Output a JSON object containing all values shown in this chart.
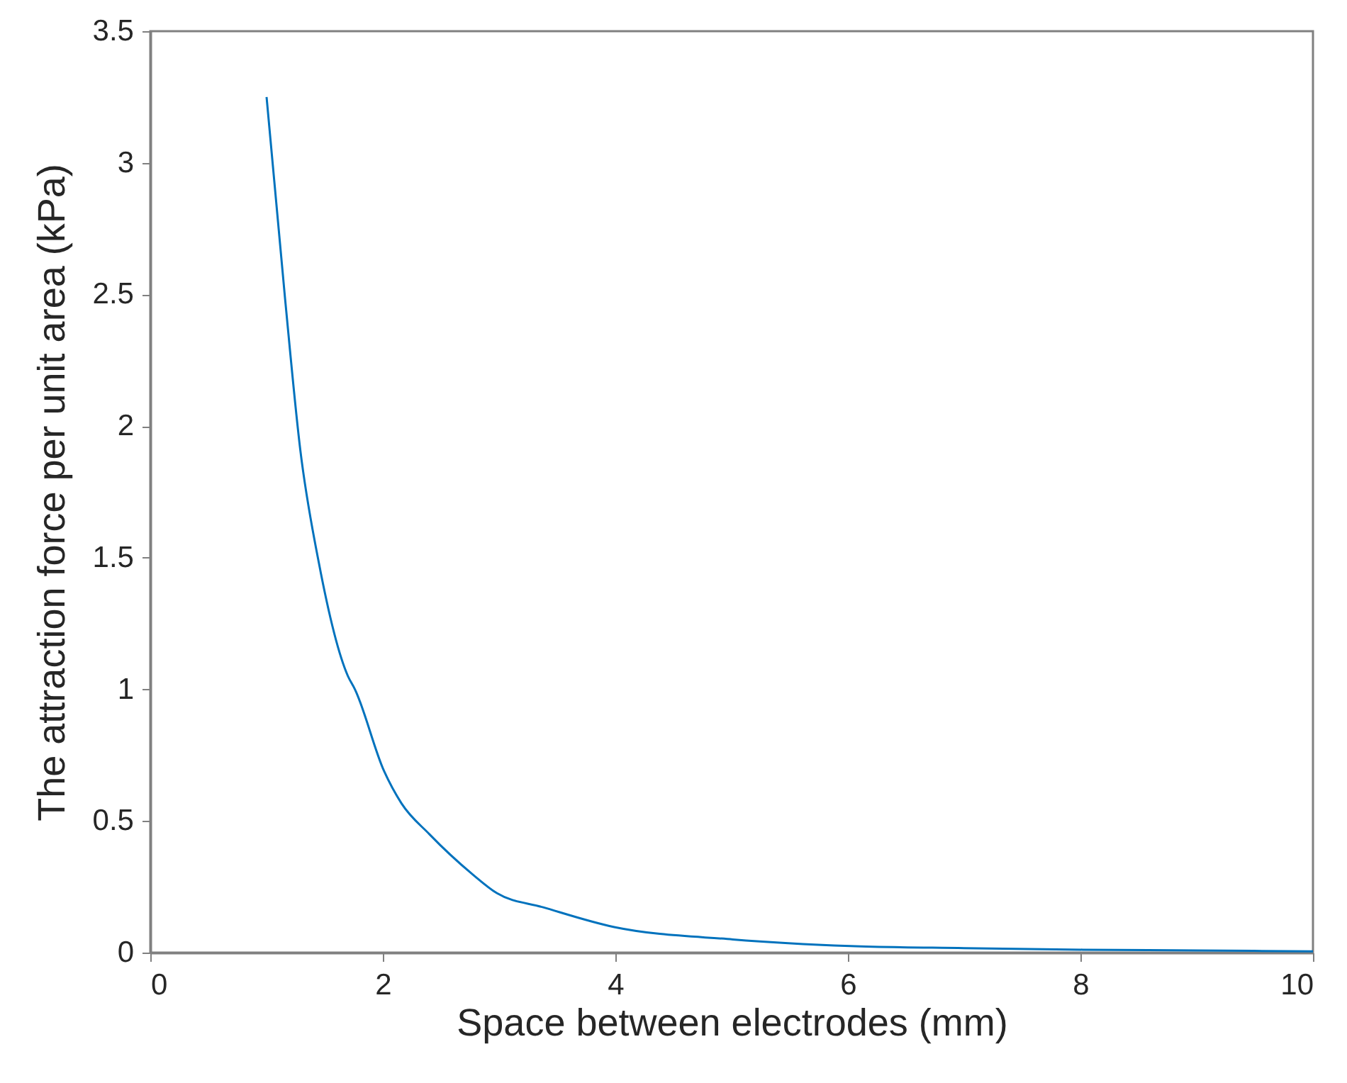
{
  "chart_data": {
    "type": "line",
    "xlabel": "Space between electrodes (mm)",
    "ylabel": "The attraction force per unit area (kPa)",
    "x": [
      1.0,
      1.16,
      1.29,
      1.45,
      1.7,
      1.76,
      2.01,
      2.16,
      2.4,
      2.77,
      2.98,
      3.38,
      3.99,
      5.01,
      6.02,
      7,
      8.02,
      9,
      10
    ],
    "series": [
      {
        "color": "#0072bd",
        "values": [
          3.25,
          2.48,
          1.91,
          1.48,
          1.05,
          1.0,
          0.69,
          0.567,
          0.45,
          0.298,
          0.226,
          0.172,
          0.097,
          0.05,
          0.025,
          0.017,
          0.011,
          0.008,
          0.005
        ]
      }
    ],
    "xlim": [
      0,
      10
    ],
    "xticks": [
      0,
      2,
      4,
      6,
      8,
      10
    ],
    "ylim": [
      0,
      3.5
    ],
    "yticks": [
      0,
      0.5,
      1,
      1.5,
      2,
      2.5,
      3,
      3.5
    ],
    "grid": false
  }
}
